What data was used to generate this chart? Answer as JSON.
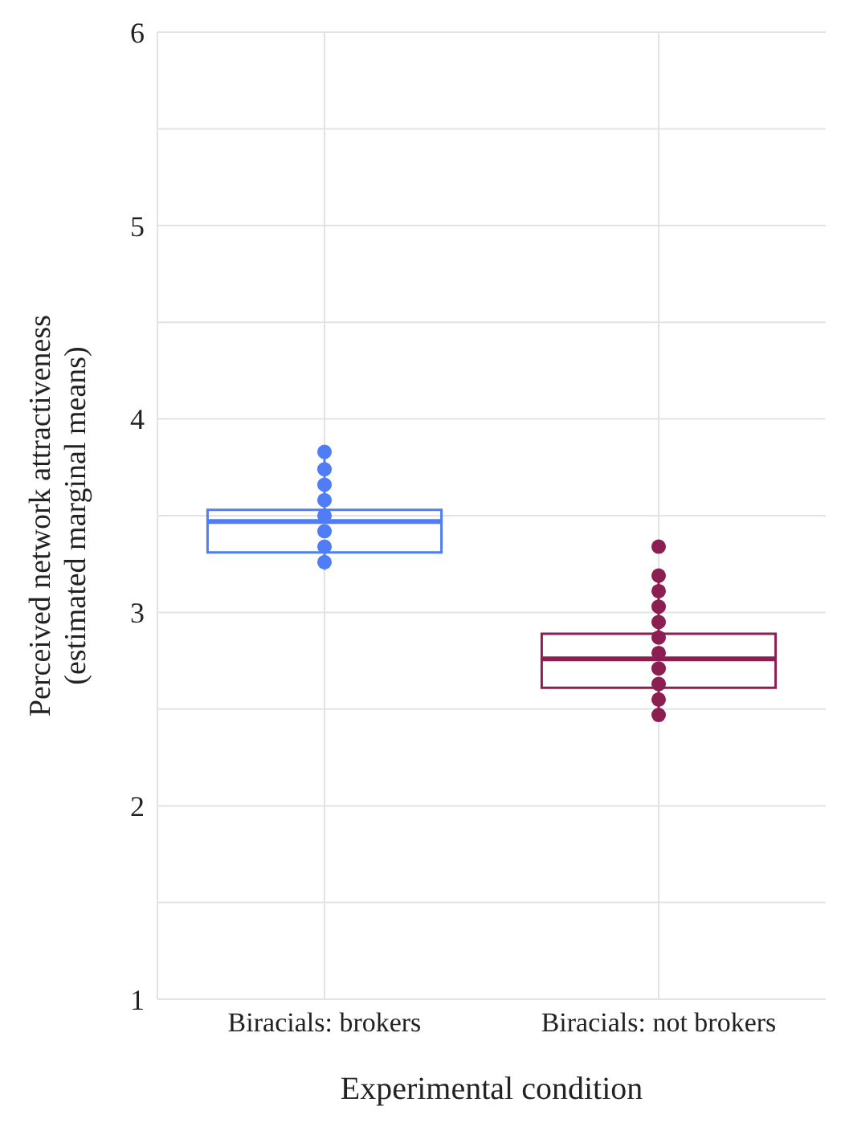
{
  "chart_data": {
    "type": "box",
    "xlabel": "Experimental condition",
    "ylabel": "Perceived network attractiveness (estimated marginal means)",
    "categories": [
      "Biracials: brokers",
      "Biracials: not brokers"
    ],
    "colors": [
      "#4f7cf7",
      "#8b1f52"
    ],
    "boxes": [
      {
        "low": 3.22,
        "q1": 3.31,
        "median": 3.47,
        "q3": 3.53,
        "high": 3.83
      },
      {
        "low": 2.47,
        "q1": 2.61,
        "median": 2.76,
        "q3": 2.89,
        "high": 3.2
      }
    ],
    "series": [
      {
        "type": "scatter",
        "color": "#4f7cf7",
        "x": [
          "Biracials: brokers",
          "Biracials: brokers",
          "Biracials: brokers",
          "Biracials: brokers",
          "Biracials: brokers",
          "Biracials: brokers",
          "Biracials: brokers",
          "Biracials: brokers"
        ],
        "values": [
          3.83,
          3.74,
          3.66,
          3.58,
          3.5,
          3.42,
          3.34,
          3.26
        ]
      },
      {
        "type": "scatter",
        "color": "#8b1f52",
        "x": [
          "Biracials: not brokers",
          "Biracials: not brokers",
          "Biracials: not brokers",
          "Biracials: not brokers",
          "Biracials: not brokers",
          "Biracials: not brokers",
          "Biracials: not brokers",
          "Biracials: not brokers",
          "Biracials: not brokers",
          "Biracials: not brokers",
          "Biracials: not brokers"
        ],
        "values": [
          3.34,
          3.19,
          3.11,
          3.03,
          2.95,
          2.87,
          2.79,
          2.71,
          2.63,
          2.55,
          2.47
        ]
      }
    ],
    "ylim": [
      1,
      6
    ],
    "yticks": [
      1,
      {
        "value": 1.5,
        "label": null
      },
      2,
      {
        "value": 2.5,
        "label": null
      },
      3,
      {
        "value": 3.5,
        "label": null
      },
      4,
      {
        "value": 4.5,
        "label": null
      },
      5,
      {
        "value": 5.5,
        "label": null
      },
      6
    ],
    "grid": true,
    "marker": "circle",
    "legend": false
  }
}
